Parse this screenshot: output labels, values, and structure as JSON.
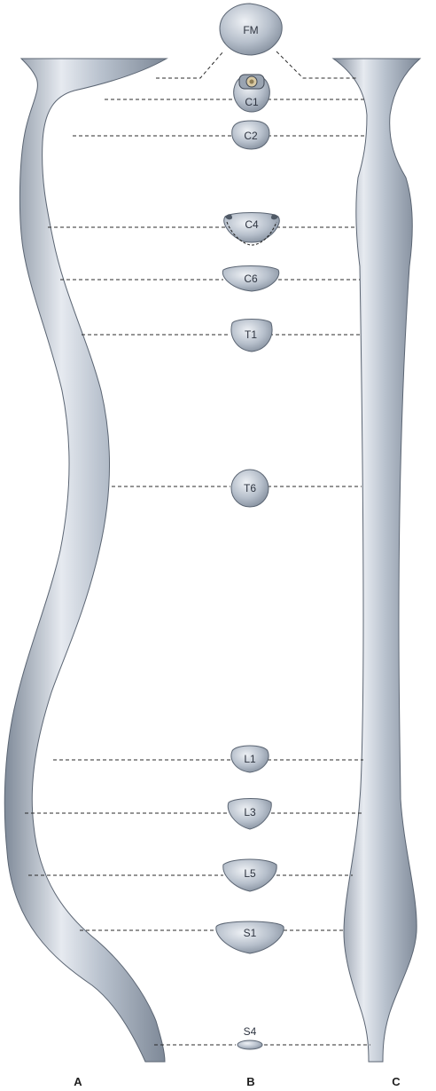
{
  "colors": {
    "canal_fill": "#b3bcc9",
    "canal_light": "#e6eaf0",
    "canal_dark": "#7f8a99",
    "outline": "#5b6573",
    "dash": "#2b2b2b"
  },
  "panels": {
    "a": "A",
    "b": "B",
    "c": "C"
  },
  "levels": {
    "fm": "FM",
    "c1": "C1",
    "c2": "C2",
    "c4": "C4",
    "c6": "C6",
    "t1": "T1",
    "t6": "T6",
    "l1": "L1",
    "l3": "L3",
    "l5": "L5",
    "s1": "S1",
    "s4": "S4"
  }
}
